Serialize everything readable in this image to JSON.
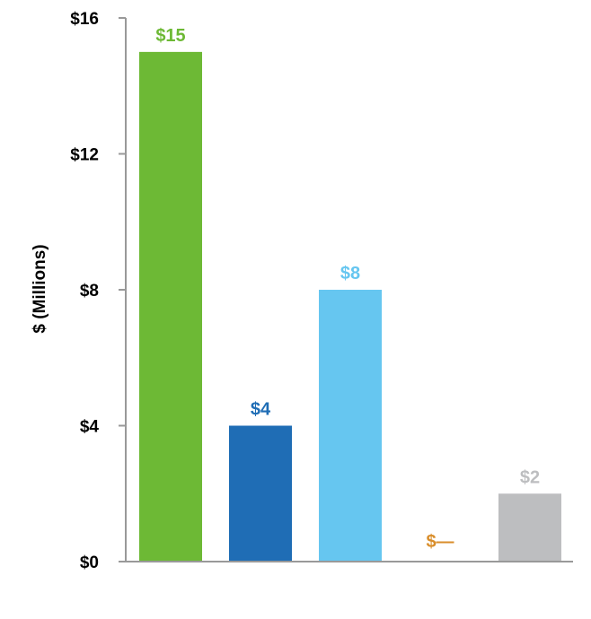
{
  "chart_data": {
    "type": "bar",
    "title": "",
    "xlabel": "",
    "ylabel": "$ (Millions)",
    "ylim": [
      0,
      16
    ],
    "yticks": [
      {
        "value": 0,
        "label": "$0"
      },
      {
        "value": 4,
        "label": "$4"
      },
      {
        "value": 8,
        "label": "$8"
      },
      {
        "value": 12,
        "label": "$12"
      },
      {
        "value": 16,
        "label": "$16"
      }
    ],
    "categories": [
      "",
      "",
      "",
      "",
      ""
    ],
    "values": [
      15,
      4,
      8,
      0,
      2
    ],
    "data_labels": [
      "$15",
      "$4",
      "$8",
      "$—",
      "$2"
    ],
    "colors": [
      "#6DB935",
      "#1F6DB5",
      "#66C6F0",
      "#D98E2B",
      "#BDBEC0"
    ],
    "grid": false,
    "legend": "none"
  }
}
